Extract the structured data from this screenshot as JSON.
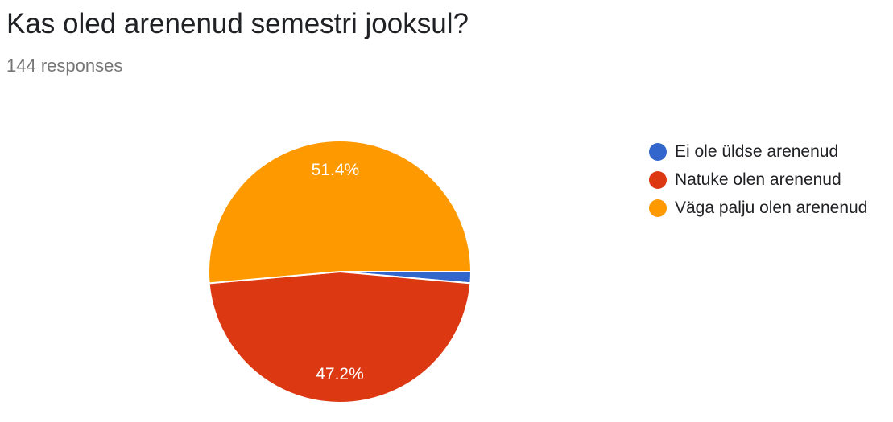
{
  "header": {
    "title": "Kas oled arenenud semestri jooksul?",
    "responses": "144 responses"
  },
  "chart_data": {
    "type": "pie",
    "categories": [
      "Ei ole üldse arenenud",
      "Natuke olen arenenud",
      "Väga palju olen arenenud"
    ],
    "values": [
      1.4,
      47.2,
      51.4
    ],
    "value_labels": [
      "",
      "47.2%",
      "51.4%"
    ],
    "colors": [
      "#3366CC",
      "#DC3912",
      "#FF9900"
    ],
    "legend_position": "right"
  }
}
